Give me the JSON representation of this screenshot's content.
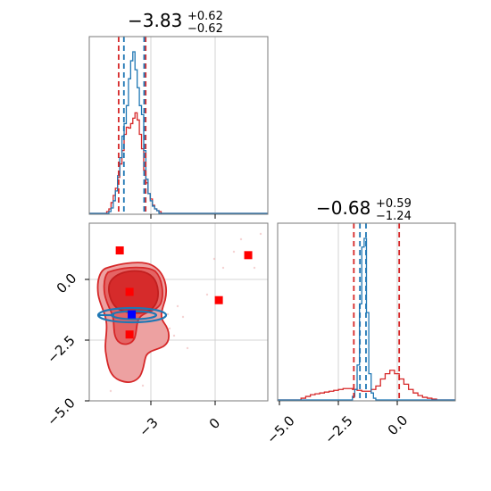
{
  "chart_data": [
    {
      "type": "histogram",
      "panel": "top-left",
      "title": {
        "main": "−3.83",
        "upper": "+0.62",
        "lower": "−0.62"
      },
      "xlim": [
        -5.8,
        2.4
      ],
      "grid": true,
      "vlines": {
        "red": [
          -4.45,
          -3.21
        ],
        "blue": [
          -4.21,
          -3.28
        ]
      },
      "series": [
        {
          "color": "#d62728",
          "bin_edges": [
            -5.0,
            -4.9,
            -4.8,
            -4.7,
            -4.6,
            -4.5,
            -4.4,
            -4.3,
            -4.2,
            -4.1,
            -4.0,
            -3.9,
            -3.8,
            -3.7,
            -3.6,
            -3.5,
            -3.4,
            -3.3,
            -3.2,
            -3.1,
            -3.0,
            -2.9,
            -2.8,
            -2.7,
            -2.6,
            -2.5
          ],
          "counts": [
            2,
            5,
            12,
            20,
            28,
            40,
            55,
            70,
            88,
            96,
            95,
            100,
            106,
            112,
            104,
            88,
            72,
            48,
            34,
            22,
            16,
            9,
            5,
            3,
            2
          ]
        },
        {
          "color": "#1f77b4",
          "bin_edges": [
            -4.9,
            -4.8,
            -4.7,
            -4.6,
            -4.5,
            -4.4,
            -4.3,
            -4.2,
            -4.1,
            -4.0,
            -3.9,
            -3.8,
            -3.7,
            -3.6,
            -3.5,
            -3.4,
            -3.3,
            -3.2,
            -3.1,
            -3.0,
            -2.9,
            -2.8,
            -2.7,
            -2.6
          ],
          "counts": [
            2,
            6,
            14,
            25,
            42,
            62,
            86,
            100,
            120,
            150,
            170,
            180,
            160,
            140,
            120,
            110,
            70,
            38,
            22,
            14,
            8,
            5,
            3
          ]
        }
      ]
    },
    {
      "type": "histogram",
      "panel": "bottom-right",
      "title": {
        "main": "−0.68",
        "upper": "+0.59",
        "lower": "−1.24"
      },
      "xlim": [
        -5.2,
        2.4
      ],
      "xticks": [
        "−5.0",
        "−2.5",
        "0.0"
      ],
      "grid": true,
      "vlines": {
        "red": [
          -1.94,
          0.0
        ],
        "blue": [
          -1.68,
          -1.42
        ]
      },
      "series": [
        {
          "color": "#d62728",
          "bin_edges": [
            -4.2,
            -4.0,
            -3.8,
            -3.6,
            -3.4,
            -3.2,
            -3.0,
            -2.8,
            -2.6,
            -2.4,
            -2.2,
            -2.0,
            -1.8,
            -1.6,
            -1.4,
            -1.2,
            -1.0,
            -0.8,
            -0.6,
            -0.4,
            -0.2,
            0.0,
            0.2,
            0.4,
            0.6,
            0.8,
            1.0,
            1.2,
            1.4,
            1.6
          ],
          "counts": [
            2,
            4,
            6,
            7,
            8,
            9,
            10,
            11,
            12,
            13,
            13,
            12,
            11,
            10,
            10,
            12,
            16,
            24,
            30,
            34,
            30,
            24,
            18,
            12,
            8,
            5,
            3,
            2,
            1
          ]
        },
        {
          "color": "#1f77b4",
          "bin_edges": [
            -2.0,
            -1.9,
            -1.8,
            -1.7,
            -1.6,
            -1.5,
            -1.4,
            -1.3,
            -1.2,
            -1.1,
            -1.0
          ],
          "counts": [
            4,
            12,
            40,
            110,
            175,
            185,
            100,
            30,
            8,
            2
          ]
        }
      ]
    },
    {
      "type": "scatter",
      "panel": "bottom-left",
      "xlim": [
        -5.8,
        2.4
      ],
      "ylim": [
        -5.1,
        2.4
      ],
      "xticks": [
        "−3",
        "0"
      ],
      "yticks": [
        "0.0",
        "−2.5",
        "−5.0"
      ],
      "grid": true,
      "contours": [
        {
          "color": "#d62728",
          "level": "outer",
          "center": [
            -3.9,
            -1.6
          ]
        },
        {
          "color": "#1f77b4",
          "level": "ellipse",
          "center": [
            -3.8,
            -1.45
          ]
        }
      ],
      "markers": {
        "red": [
          {
            "x": -4.4,
            "y": 1.25
          },
          {
            "x": -3.95,
            "y": -0.5
          },
          {
            "x": -3.95,
            "y": -2.3
          },
          {
            "x": 0.15,
            "y": -0.85
          },
          {
            "x": 1.5,
            "y": 1.05
          }
        ],
        "blue": [
          {
            "x": -3.85,
            "y": -1.45
          }
        ]
      }
    }
  ]
}
